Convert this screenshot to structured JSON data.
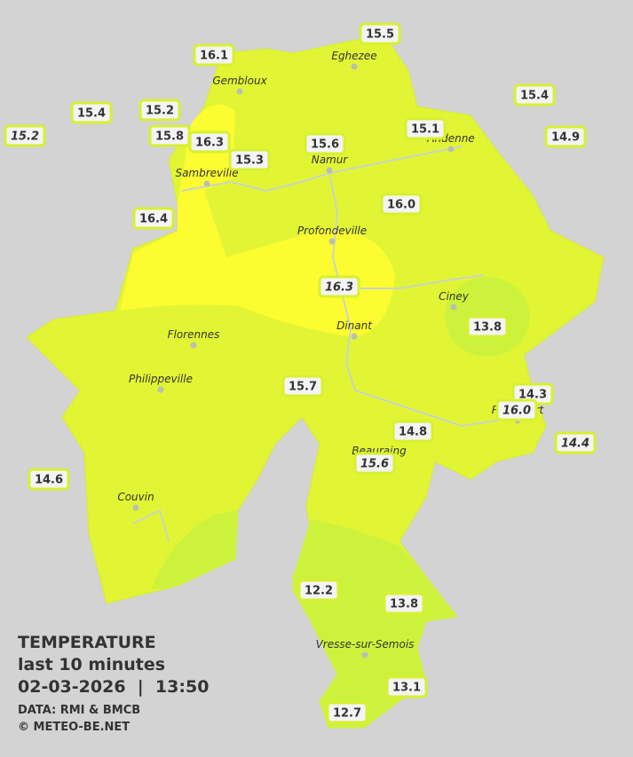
{
  "title": "TEMPERATURE",
  "subtitle": "last 10 minutes",
  "timestamp": "02-03-2026  |  13:50",
  "source": "DATA: RMI & BMCB",
  "credit": "© METEO-BE.NET",
  "cities": [
    "Eghezee",
    "Gembloux",
    "Andenne",
    "Namur",
    "Sambreville",
    "Profondeville",
    "Ciney",
    "Dinant",
    "Florennes",
    "Philippeville",
    "Rochefort",
    "Beauraing",
    "Couvin",
    "Vresse-sur-Semois"
  ],
  "temperatures": [
    {
      "value": "15.5",
      "italic": false
    },
    {
      "value": "16.1",
      "italic": false
    },
    {
      "value": "15.4",
      "italic": false
    },
    {
      "value": "15.4",
      "italic": false
    },
    {
      "value": "15.2",
      "italic": false
    },
    {
      "value": "15.2",
      "italic": true
    },
    {
      "value": "15.8",
      "italic": false
    },
    {
      "value": "16.3",
      "italic": false
    },
    {
      "value": "15.6",
      "italic": false
    },
    {
      "value": "15.1",
      "italic": false
    },
    {
      "value": "14.9",
      "italic": false
    },
    {
      "value": "15.3",
      "italic": false
    },
    {
      "value": "16.0",
      "italic": false
    },
    {
      "value": "16.4",
      "italic": false
    },
    {
      "value": "16.3",
      "italic": true
    },
    {
      "value": "13.8",
      "italic": false
    },
    {
      "value": "15.7",
      "italic": false
    },
    {
      "value": "14.3",
      "italic": false
    },
    {
      "value": "16.0",
      "italic": true
    },
    {
      "value": "14.4",
      "italic": true
    },
    {
      "value": "14.8",
      "italic": false
    },
    {
      "value": "15.6",
      "italic": true
    },
    {
      "value": "14.6",
      "italic": false
    },
    {
      "value": "12.2",
      "italic": false
    },
    {
      "value": "13.8",
      "italic": false
    },
    {
      "value": "13.1",
      "italic": false
    },
    {
      "value": "12.7",
      "italic": false
    }
  ]
}
